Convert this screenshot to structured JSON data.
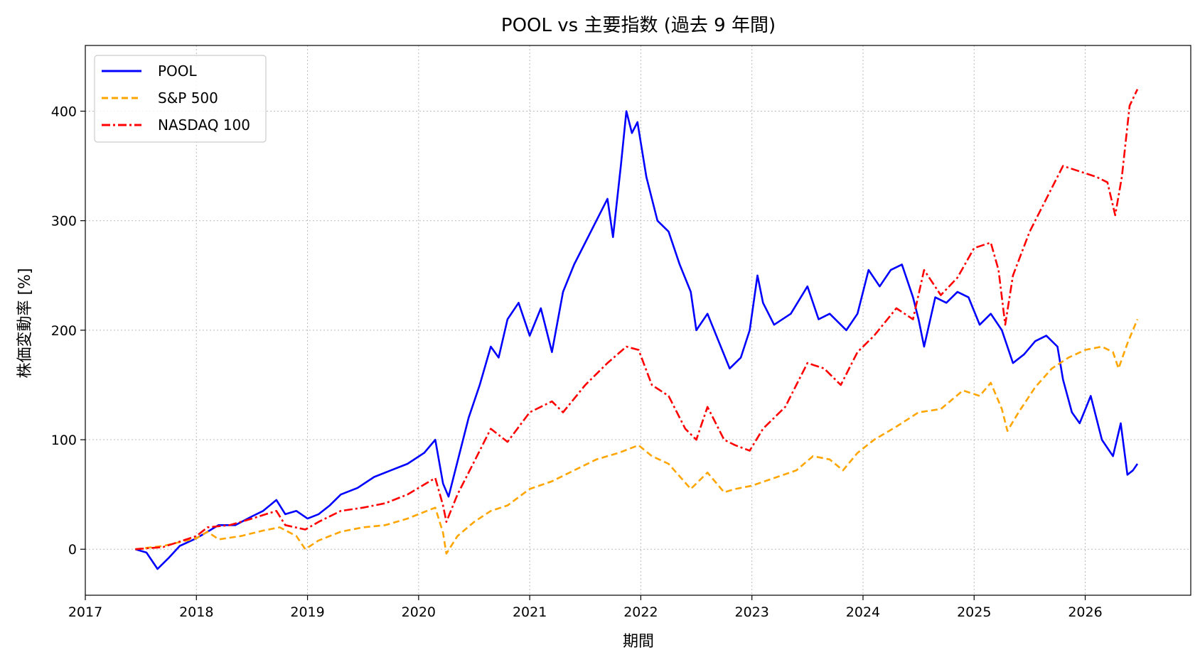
{
  "chart_data": {
    "type": "line",
    "title": "POOL vs 主要指数 (過去 9 年間)",
    "xlabel": "期間",
    "ylabel": "株価変動率 [%]",
    "xlim": [
      2017.0,
      2026.95
    ],
    "ylim": [
      -42,
      460
    ],
    "x_ticks": [
      2017,
      2018,
      2019,
      2020,
      2021,
      2022,
      2023,
      2024,
      2025,
      2026
    ],
    "x_tick_labels": [
      "2017",
      "2018",
      "2019",
      "2020",
      "2021",
      "2022",
      "2023",
      "2024",
      "2025",
      "2026"
    ],
    "y_ticks": [
      0,
      100,
      200,
      300,
      400
    ],
    "y_tick_labels": [
      "0",
      "100",
      "200",
      "300",
      "400"
    ],
    "grid": true,
    "legend_position": "upper-left",
    "series": [
      {
        "name": "POOL",
        "color": "#0000ff",
        "style": "solid",
        "points": [
          [
            2017.45,
            0
          ],
          [
            2017.55,
            -3
          ],
          [
            2017.65,
            -18
          ],
          [
            2017.75,
            -8
          ],
          [
            2017.85,
            3
          ],
          [
            2018.0,
            10
          ],
          [
            2018.1,
            16
          ],
          [
            2018.2,
            22
          ],
          [
            2018.35,
            22
          ],
          [
            2018.5,
            30
          ],
          [
            2018.6,
            35
          ],
          [
            2018.72,
            45
          ],
          [
            2018.8,
            32
          ],
          [
            2018.9,
            35
          ],
          [
            2019.0,
            28
          ],
          [
            2019.1,
            32
          ],
          [
            2019.2,
            40
          ],
          [
            2019.3,
            50
          ],
          [
            2019.45,
            56
          ],
          [
            2019.6,
            66
          ],
          [
            2019.75,
            72
          ],
          [
            2019.9,
            78
          ],
          [
            2020.05,
            88
          ],
          [
            2020.15,
            100
          ],
          [
            2020.22,
            60
          ],
          [
            2020.27,
            48
          ],
          [
            2020.35,
            80
          ],
          [
            2020.45,
            120
          ],
          [
            2020.55,
            150
          ],
          [
            2020.65,
            185
          ],
          [
            2020.72,
            175
          ],
          [
            2020.8,
            210
          ],
          [
            2020.9,
            225
          ],
          [
            2021.0,
            195
          ],
          [
            2021.1,
            220
          ],
          [
            2021.2,
            180
          ],
          [
            2021.3,
            235
          ],
          [
            2021.4,
            260
          ],
          [
            2021.5,
            280
          ],
          [
            2021.6,
            300
          ],
          [
            2021.7,
            320
          ],
          [
            2021.75,
            285
          ],
          [
            2021.82,
            350
          ],
          [
            2021.87,
            400
          ],
          [
            2021.92,
            380
          ],
          [
            2021.97,
            390
          ],
          [
            2022.05,
            340
          ],
          [
            2022.15,
            300
          ],
          [
            2022.25,
            290
          ],
          [
            2022.35,
            260
          ],
          [
            2022.45,
            235
          ],
          [
            2022.5,
            200
          ],
          [
            2022.6,
            215
          ],
          [
            2022.7,
            190
          ],
          [
            2022.8,
            165
          ],
          [
            2022.9,
            175
          ],
          [
            2022.98,
            200
          ],
          [
            2023.05,
            250
          ],
          [
            2023.1,
            225
          ],
          [
            2023.2,
            205
          ],
          [
            2023.35,
            215
          ],
          [
            2023.5,
            240
          ],
          [
            2023.6,
            210
          ],
          [
            2023.7,
            215
          ],
          [
            2023.85,
            200
          ],
          [
            2023.95,
            215
          ],
          [
            2024.05,
            255
          ],
          [
            2024.15,
            240
          ],
          [
            2024.25,
            255
          ],
          [
            2024.35,
            260
          ],
          [
            2024.45,
            230
          ],
          [
            2024.5,
            210
          ],
          [
            2024.55,
            185
          ],
          [
            2024.65,
            230
          ],
          [
            2024.75,
            225
          ],
          [
            2024.85,
            235
          ],
          [
            2024.95,
            230
          ],
          [
            2025.05,
            205
          ],
          [
            2025.15,
            215
          ],
          [
            2025.25,
            200
          ],
          [
            2025.35,
            170
          ],
          [
            2025.45,
            178
          ],
          [
            2025.55,
            190
          ],
          [
            2025.65,
            195
          ],
          [
            2025.75,
            185
          ],
          [
            2025.8,
            155
          ],
          [
            2025.88,
            125
          ],
          [
            2025.95,
            115
          ],
          [
            2026.05,
            140
          ],
          [
            2026.15,
            100
          ],
          [
            2026.25,
            85
          ],
          [
            2026.32,
            115
          ],
          [
            2026.38,
            68
          ],
          [
            2026.43,
            72
          ],
          [
            2026.47,
            78
          ]
        ]
      },
      {
        "name": "S&P 500",
        "color": "#ffa500",
        "style": "dashed",
        "points": [
          [
            2017.45,
            0
          ],
          [
            2017.7,
            3
          ],
          [
            2018.0,
            10
          ],
          [
            2018.1,
            16
          ],
          [
            2018.2,
            9
          ],
          [
            2018.4,
            12
          ],
          [
            2018.6,
            17
          ],
          [
            2018.75,
            20
          ],
          [
            2018.9,
            12
          ],
          [
            2018.98,
            0
          ],
          [
            2019.1,
            8
          ],
          [
            2019.3,
            16
          ],
          [
            2019.5,
            20
          ],
          [
            2019.7,
            22
          ],
          [
            2019.9,
            28
          ],
          [
            2020.1,
            36
          ],
          [
            2020.15,
            38
          ],
          [
            2020.22,
            15
          ],
          [
            2020.25,
            -4
          ],
          [
            2020.35,
            12
          ],
          [
            2020.5,
            25
          ],
          [
            2020.65,
            35
          ],
          [
            2020.8,
            40
          ],
          [
            2021.0,
            55
          ],
          [
            2021.2,
            62
          ],
          [
            2021.4,
            72
          ],
          [
            2021.6,
            82
          ],
          [
            2021.8,
            88
          ],
          [
            2021.98,
            95
          ],
          [
            2022.1,
            85
          ],
          [
            2022.25,
            78
          ],
          [
            2022.45,
            55
          ],
          [
            2022.6,
            70
          ],
          [
            2022.75,
            52
          ],
          [
            2022.85,
            55
          ],
          [
            2023.0,
            58
          ],
          [
            2023.2,
            65
          ],
          [
            2023.4,
            72
          ],
          [
            2023.55,
            85
          ],
          [
            2023.7,
            82
          ],
          [
            2023.82,
            72
          ],
          [
            2023.95,
            88
          ],
          [
            2024.1,
            100
          ],
          [
            2024.3,
            112
          ],
          [
            2024.5,
            125
          ],
          [
            2024.7,
            128
          ],
          [
            2024.9,
            145
          ],
          [
            2025.05,
            140
          ],
          [
            2025.15,
            152
          ],
          [
            2025.25,
            128
          ],
          [
            2025.3,
            108
          ],
          [
            2025.4,
            125
          ],
          [
            2025.55,
            148
          ],
          [
            2025.7,
            165
          ],
          [
            2025.85,
            175
          ],
          [
            2026.0,
            182
          ],
          [
            2026.15,
            185
          ],
          [
            2026.25,
            180
          ],
          [
            2026.3,
            165
          ],
          [
            2026.38,
            188
          ],
          [
            2026.47,
            210
          ]
        ]
      },
      {
        "name": "NASDAQ 100",
        "color": "#ff0000",
        "style": "dashdot",
        "points": [
          [
            2017.45,
            0
          ],
          [
            2017.7,
            2
          ],
          [
            2018.0,
            12
          ],
          [
            2018.1,
            20
          ],
          [
            2018.3,
            22
          ],
          [
            2018.5,
            28
          ],
          [
            2018.72,
            35
          ],
          [
            2018.8,
            22
          ],
          [
            2018.98,
            18
          ],
          [
            2019.1,
            25
          ],
          [
            2019.3,
            35
          ],
          [
            2019.5,
            38
          ],
          [
            2019.7,
            42
          ],
          [
            2019.9,
            50
          ],
          [
            2020.1,
            62
          ],
          [
            2020.15,
            65
          ],
          [
            2020.22,
            40
          ],
          [
            2020.25,
            25
          ],
          [
            2020.35,
            50
          ],
          [
            2020.5,
            80
          ],
          [
            2020.65,
            110
          ],
          [
            2020.8,
            98
          ],
          [
            2021.0,
            125
          ],
          [
            2021.2,
            135
          ],
          [
            2021.3,
            125
          ],
          [
            2021.5,
            150
          ],
          [
            2021.7,
            170
          ],
          [
            2021.87,
            185
          ],
          [
            2021.98,
            182
          ],
          [
            2022.1,
            150
          ],
          [
            2022.25,
            140
          ],
          [
            2022.4,
            110
          ],
          [
            2022.5,
            100
          ],
          [
            2022.6,
            130
          ],
          [
            2022.75,
            100
          ],
          [
            2022.85,
            95
          ],
          [
            2022.98,
            90
          ],
          [
            2023.1,
            110
          ],
          [
            2023.3,
            130
          ],
          [
            2023.5,
            170
          ],
          [
            2023.65,
            165
          ],
          [
            2023.8,
            150
          ],
          [
            2023.95,
            180
          ],
          [
            2024.1,
            195
          ],
          [
            2024.3,
            220
          ],
          [
            2024.45,
            210
          ],
          [
            2024.55,
            255
          ],
          [
            2024.7,
            232
          ],
          [
            2024.85,
            248
          ],
          [
            2025.0,
            275
          ],
          [
            2025.15,
            280
          ],
          [
            2025.22,
            255
          ],
          [
            2025.28,
            205
          ],
          [
            2025.35,
            250
          ],
          [
            2025.5,
            290
          ],
          [
            2025.65,
            320
          ],
          [
            2025.8,
            350
          ],
          [
            2025.95,
            345
          ],
          [
            2026.1,
            340
          ],
          [
            2026.2,
            335
          ],
          [
            2026.27,
            305
          ],
          [
            2026.33,
            340
          ],
          [
            2026.4,
            405
          ],
          [
            2026.47,
            420
          ]
        ]
      }
    ]
  }
}
